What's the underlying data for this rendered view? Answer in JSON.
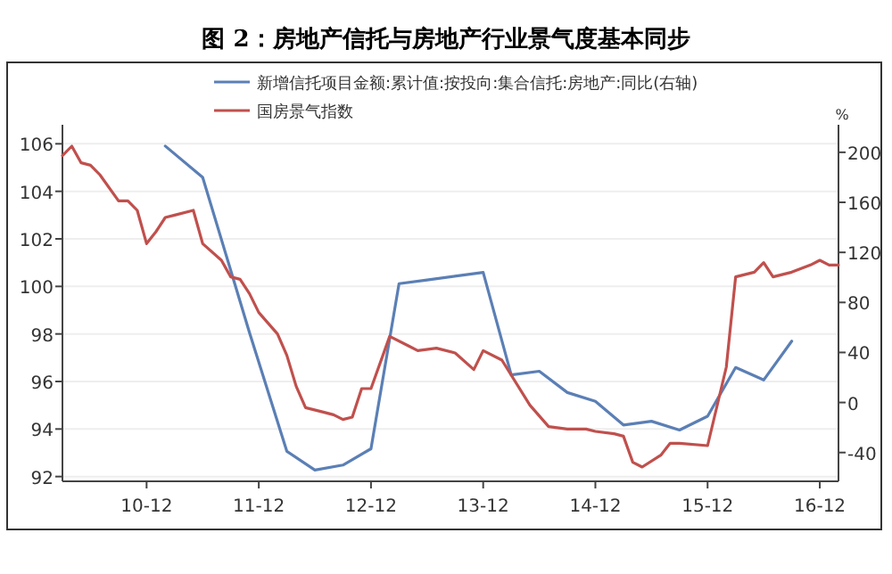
{
  "chart_data": {
    "type": "line",
    "title": "图 2：房地产信托与房地产行业景气度基本同步",
    "y2label": "%",
    "xlim": [
      "2010-03",
      "2017-02"
    ],
    "xticks": [
      {
        "value": "2010-12",
        "label": "10-12"
      },
      {
        "value": "2011-12",
        "label": "11-12"
      },
      {
        "value": "2012-12",
        "label": "12-12"
      },
      {
        "value": "2013-12",
        "label": "13-12"
      },
      {
        "value": "2014-12",
        "label": "14-12"
      },
      {
        "value": "2015-12",
        "label": "15-12"
      },
      {
        "value": "2016-12",
        "label": "16-12"
      }
    ],
    "ylim": [
      91.8,
      106.8
    ],
    "yticks": [
      92,
      94,
      96,
      98,
      100,
      102,
      104,
      106
    ],
    "y2lim": [
      -63,
      222
    ],
    "y2ticks": [
      -40,
      0,
      40,
      80,
      120,
      160,
      200
    ],
    "grid": "y",
    "legend": "top",
    "line_style": "solid",
    "marker": "none",
    "series": [
      {
        "name": "新增信托项目金额:累计值:按投向:集合信托:房地产:同比(右轴)",
        "color": "#5b7fb5",
        "axis": "y2",
        "x": [
          "2011-02",
          "2011-06",
          "2011-11",
          "2012-03",
          "2012-06",
          "2012-09",
          "2012-12",
          "2013-03",
          "2013-06",
          "2013-12",
          "2014-03",
          "2014-06",
          "2014-09",
          "2014-12",
          "2015-03",
          "2015-06",
          "2015-09",
          "2015-12",
          "2016-03",
          "2016-06",
          "2016-09"
        ],
        "values": [
          205,
          180,
          56,
          -39,
          -54,
          -50,
          -37,
          95,
          98,
          104,
          22,
          25,
          8,
          1,
          -18,
          -15,
          -22,
          -11,
          28,
          18,
          49
        ]
      },
      {
        "name": "国房景气指数",
        "color": "#c0504d",
        "x": [
          "2010-03",
          "2010-04",
          "2010-05",
          "2010-06",
          "2010-07",
          "2010-09",
          "2010-10",
          "2010-11",
          "2010-12",
          "2011-01",
          "2011-02",
          "2011-03",
          "2011-05",
          "2011-06",
          "2011-08",
          "2011-09",
          "2011-10",
          "2011-11",
          "2011-12",
          "2012-02",
          "2012-03",
          "2012-04",
          "2012-05",
          "2012-07",
          "2012-08",
          "2012-09",
          "2012-10",
          "2012-11",
          "2012-12",
          "2013-02",
          "2013-04",
          "2013-05",
          "2013-07",
          "2013-09",
          "2013-11",
          "2013-12",
          "2014-02",
          "2014-05",
          "2014-07",
          "2014-09",
          "2014-11",
          "2014-12",
          "2015-02",
          "2015-03",
          "2015-04",
          "2015-05",
          "2015-07",
          "2015-08",
          "2015-09",
          "2015-12",
          "2016-02",
          "2016-03",
          "2016-05",
          "2016-06",
          "2016-07",
          "2016-09",
          "2016-11",
          "2016-12",
          "2017-01",
          "2017-02"
        ],
        "values": [
          105.5,
          105.9,
          105.2,
          105.1,
          104.7,
          103.6,
          103.6,
          103.2,
          101.8,
          102.3,
          102.9,
          103.0,
          103.2,
          101.8,
          101.1,
          100.4,
          100.3,
          99.7,
          98.9,
          98.0,
          97.1,
          95.8,
          94.9,
          94.7,
          94.6,
          94.4,
          94.5,
          95.7,
          95.7,
          97.9,
          97.5,
          97.3,
          97.4,
          97.2,
          96.5,
          97.3,
          96.9,
          95.0,
          94.1,
          94.0,
          94.0,
          93.9,
          93.8,
          93.7,
          92.6,
          92.4,
          92.9,
          93.4,
          93.4,
          93.3,
          96.6,
          100.4,
          100.6,
          101.0,
          100.4,
          100.6,
          100.9,
          101.1,
          100.9,
          100.9
        ]
      }
    ]
  }
}
